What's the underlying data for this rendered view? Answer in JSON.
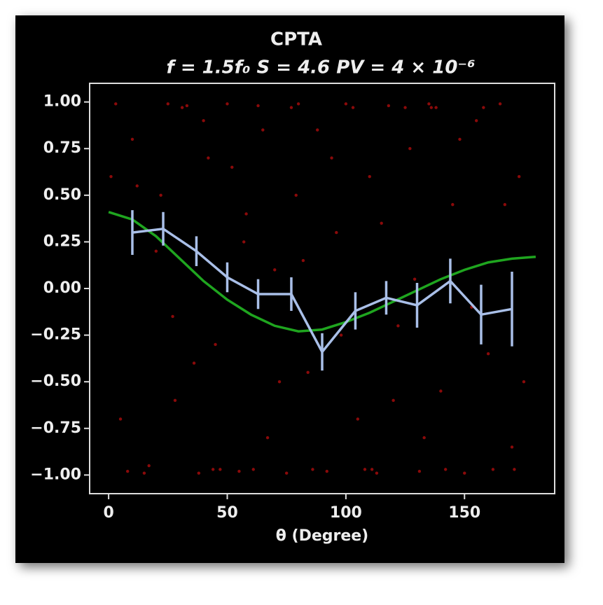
{
  "chart_data": {
    "type": "scatter",
    "title": "CPTA",
    "subtitle": "f = 1.5f₀ S = 4.6 PV = 4 × 10⁻⁶",
    "xlabel": "θ (Degree)",
    "xlim": [
      -8,
      188
    ],
    "ylim": [
      -1.1,
      1.1
    ],
    "xticks": [
      0,
      50,
      100,
      150
    ],
    "yticks": [
      {
        "value": 1,
        "label": "1.00"
      },
      {
        "value": 0.75,
        "label": "0.75"
      },
      {
        "value": 0.5,
        "label": "0.50"
      },
      {
        "value": 0.25,
        "label": "0.25"
      },
      {
        "value": 0,
        "label": "0.00"
      },
      {
        "value": -0.25,
        "label": "−0.25"
      },
      {
        "value": -0.5,
        "label": "−0.50"
      },
      {
        "value": -0.75,
        "label": "−0.75"
      },
      {
        "value": -1,
        "label": "−1.00"
      }
    ],
    "series": [
      {
        "type": "scatter",
        "color": "#8b0a0a",
        "x": [
          3,
          8,
          12,
          15,
          20,
          25,
          28,
          33,
          38,
          42,
          45,
          50,
          55,
          58,
          63,
          67,
          70,
          75,
          80,
          84,
          88,
          92,
          96,
          100,
          105,
          110,
          113,
          118,
          122,
          127,
          131,
          135,
          140,
          145,
          150,
          155,
          160,
          165,
          170,
          173,
          5,
          10,
          17,
          22,
          27,
          31,
          36,
          40,
          47,
          52,
          57,
          61,
          65,
          72,
          77,
          82,
          86,
          94,
          98,
          103,
          108,
          115,
          120,
          125,
          129,
          133,
          138,
          142,
          148,
          153,
          158,
          162,
          167,
          171,
          1,
          44,
          79,
          111,
          136,
          175
        ],
        "values": [
          0.99,
          -0.98,
          0.55,
          -0.99,
          0.2,
          0.99,
          -0.6,
          0.98,
          -0.99,
          0.7,
          -0.3,
          0.99,
          -0.98,
          0.4,
          0.98,
          -0.8,
          0.1,
          -0.99,
          0.99,
          -0.45,
          0.85,
          -0.98,
          0.3,
          0.99,
          -0.7,
          0.6,
          -0.99,
          0.98,
          -0.2,
          0.75,
          -0.98,
          0.99,
          -0.55,
          0.45,
          -0.99,
          0.9,
          -0.35,
          0.99,
          -0.85,
          0.6,
          -0.7,
          0.8,
          -0.95,
          0.5,
          -0.15,
          0.97,
          -0.4,
          0.9,
          -0.97,
          0.65,
          0.25,
          -0.97,
          0.85,
          -0.5,
          0.97,
          0.15,
          -0.97,
          0.7,
          -0.25,
          0.97,
          -0.97,
          0.35,
          -0.6,
          0.97,
          0.05,
          -0.8,
          0.97,
          -0.97,
          0.8,
          -0.1,
          0.97,
          -0.97,
          0.45,
          -0.97,
          0.6,
          -0.97,
          0.5,
          -0.97,
          0.97,
          -0.5
        ]
      },
      {
        "type": "line",
        "color": "#1fa51f",
        "x": [
          0,
          10,
          20,
          30,
          40,
          50,
          60,
          70,
          80,
          90,
          100,
          110,
          120,
          130,
          140,
          150,
          160,
          170,
          180
        ],
        "values": [
          0.41,
          0.37,
          0.28,
          0.16,
          0.04,
          -0.06,
          -0.14,
          -0.2,
          -0.23,
          -0.22,
          -0.18,
          -0.13,
          -0.07,
          -0.01,
          0.05,
          0.1,
          0.14,
          0.16,
          0.17
        ]
      },
      {
        "type": "errorbar",
        "color": "#a9bfe8",
        "x": [
          10,
          23,
          37,
          50,
          63,
          77,
          90,
          104,
          117,
          130,
          144,
          157,
          170
        ],
        "values": [
          0.3,
          0.32,
          0.2,
          0.06,
          -0.03,
          -0.03,
          -0.34,
          -0.12,
          -0.05,
          -0.09,
          0.04,
          -0.14,
          -0.11
        ],
        "errors": [
          0.12,
          0.09,
          0.08,
          0.08,
          0.08,
          0.09,
          0.1,
          0.1,
          0.09,
          0.12,
          0.12,
          0.16,
          0.2
        ]
      }
    ]
  }
}
